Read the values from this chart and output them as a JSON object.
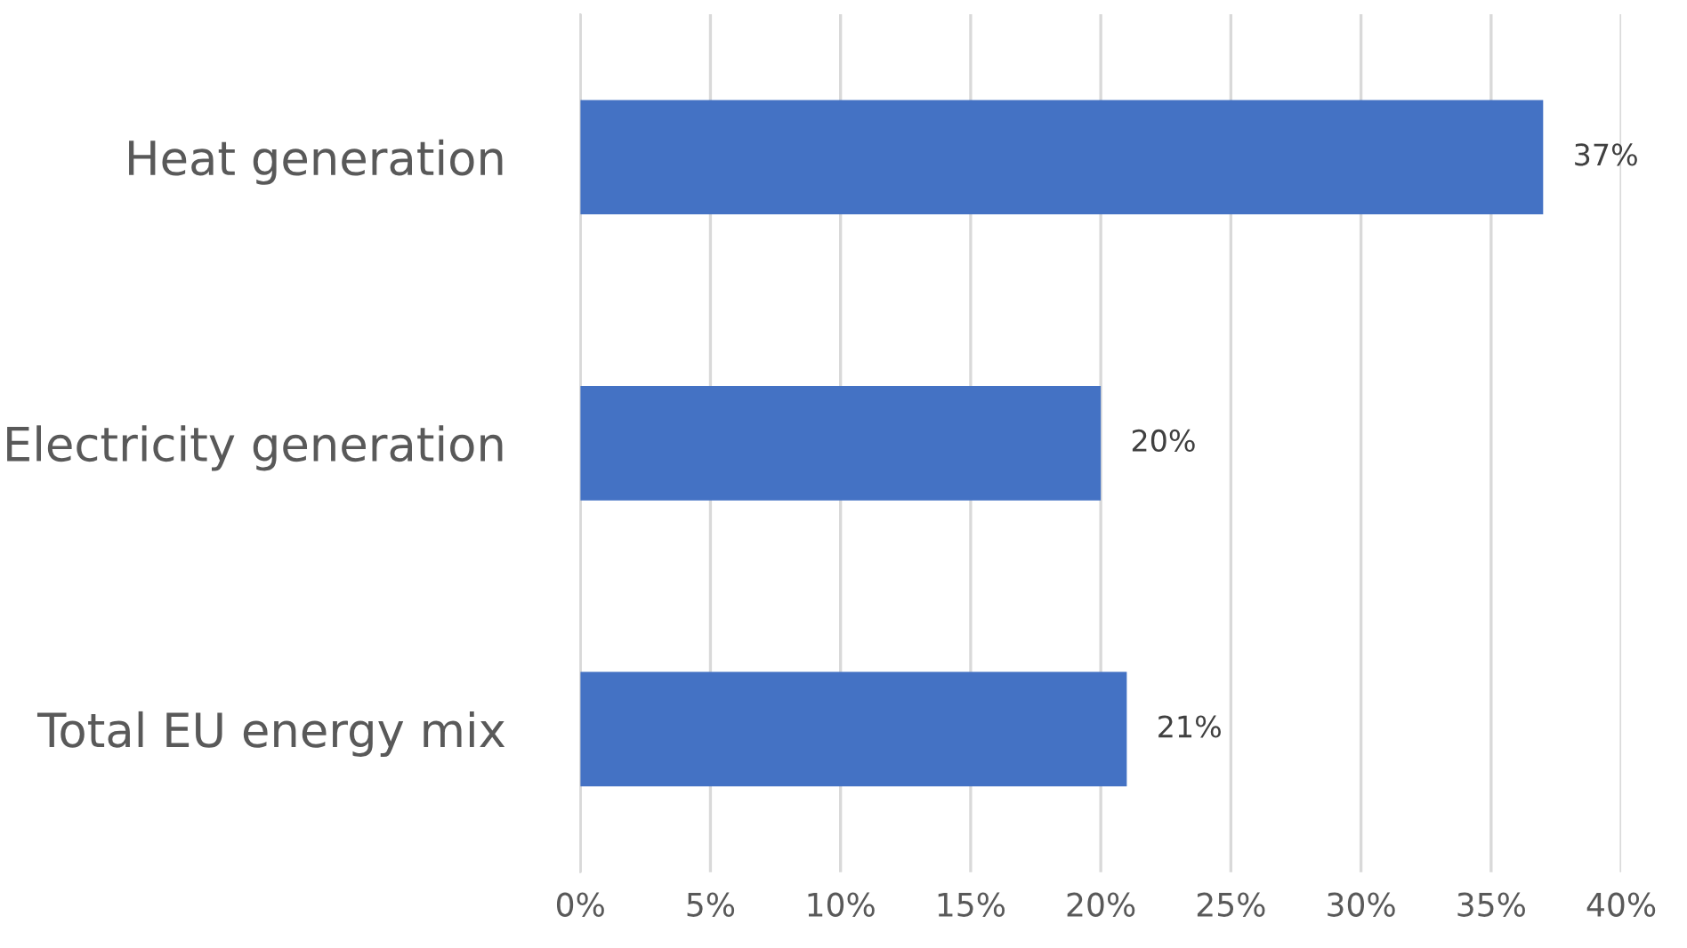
{
  "chart_data": {
    "type": "bar",
    "orientation": "horizontal",
    "categories": [
      "Heat generation",
      "Electricity generation",
      "Total EU energy mix"
    ],
    "values": [
      37,
      20,
      21
    ],
    "color": "#4472c4",
    "value_labels": [
      "37%",
      "20%",
      "21%"
    ],
    "xlim": [
      0,
      40
    ],
    "xticks": [
      {
        "value": 0,
        "label": "0%"
      },
      {
        "value": 5,
        "label": "5%"
      },
      {
        "value": 10,
        "label": "10%"
      },
      {
        "value": 15,
        "label": "15%"
      },
      {
        "value": 20,
        "label": "20%"
      },
      {
        "value": 25,
        "label": "25%"
      },
      {
        "value": 30,
        "label": "30%"
      },
      {
        "value": 35,
        "label": "35%"
      },
      {
        "value": 40,
        "label": "40%"
      }
    ],
    "grid": "x",
    "legend": false
  }
}
